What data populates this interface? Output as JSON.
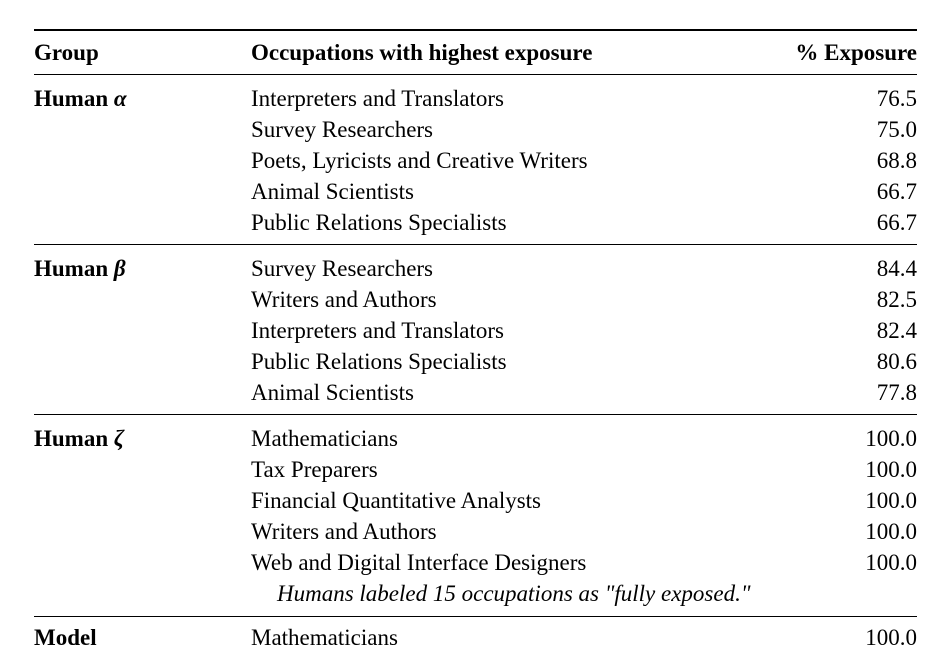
{
  "table": {
    "headers": [
      "Group",
      "Occupations with highest exposure",
      "% Exposure"
    ],
    "groups": [
      {
        "label": "Human",
        "symbol": "α",
        "rows": [
          {
            "occupation": "Interpreters and Translators",
            "exposure": "76.5"
          },
          {
            "occupation": "Survey Researchers",
            "exposure": "75.0"
          },
          {
            "occupation": "Poets, Lyricists and Creative Writers",
            "exposure": "68.8"
          },
          {
            "occupation": "Animal Scientists",
            "exposure": "66.7"
          },
          {
            "occupation": "Public Relations Specialists",
            "exposure": "66.7"
          }
        ]
      },
      {
        "label": "Human",
        "symbol": "β",
        "rows": [
          {
            "occupation": "Survey Researchers",
            "exposure": "84.4"
          },
          {
            "occupation": "Writers and Authors",
            "exposure": "82.5"
          },
          {
            "occupation": "Interpreters and Translators",
            "exposure": "82.4"
          },
          {
            "occupation": "Public Relations Specialists",
            "exposure": "80.6"
          },
          {
            "occupation": "Animal Scientists",
            "exposure": "77.8"
          }
        ]
      },
      {
        "label": "Human",
        "symbol": "ζ",
        "rows": [
          {
            "occupation": "Mathematicians",
            "exposure": "100.0"
          },
          {
            "occupation": "Tax Preparers",
            "exposure": "100.0"
          },
          {
            "occupation": "Financial Quantitative Analysts",
            "exposure": "100.0"
          },
          {
            "occupation": "Writers and Authors",
            "exposure": "100.0"
          },
          {
            "occupation": "Web and Digital Interface Designers",
            "exposure": "100.0"
          }
        ],
        "note": "Humans labeled 15 occupations as \"fully exposed.\""
      },
      {
        "label": "Model",
        "symbol": "",
        "rows": [
          {
            "occupation": "Mathematicians",
            "exposure": "100.0"
          }
        ]
      }
    ]
  }
}
